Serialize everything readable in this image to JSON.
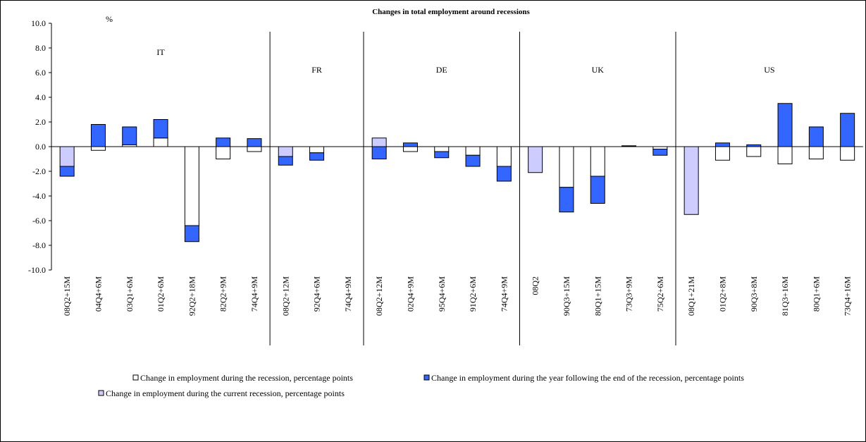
{
  "chart_data": {
    "type": "stacked-bar",
    "title": "Changes in total employment around recessions",
    "y_unit_label": "%",
    "groups": [
      "IT",
      "FR",
      "DE",
      "UK",
      "US"
    ],
    "categories": [
      "08Q2+15M",
      "04Q4+6M",
      "03Q1+6M",
      "01Q2+6M",
      "92Q2+18M",
      "82Q2+9M",
      "74Q4+9M",
      "08Q2+12M",
      "92Q4+6M",
      "74Q4+9M",
      "08Q2+12M",
      "02Q4+9M",
      "95Q4+6M",
      "91Q2+6M",
      "74Q4+9M",
      "08Q2",
      "90Q3+15M",
      "80Q1+15M",
      "73Q3+9M",
      "75Q2+6M",
      "08Q1+21M",
      "01Q2+8M",
      "90Q3+8M",
      "81Q3+16M",
      "80Q1+6M",
      "73Q4+16M"
    ],
    "series": [
      {
        "name": "Change in employment during the recession, percentage points",
        "color": "#ffffff",
        "values": [
          null,
          -0.3,
          0.15,
          0.7,
          -6.4,
          -1.0,
          -0.4,
          null,
          -0.5,
          null,
          null,
          -0.4,
          -0.4,
          -0.7,
          -1.6,
          null,
          -3.3,
          -2.4,
          0.02,
          -0.2,
          null,
          -1.1,
          -0.8,
          -1.4,
          -1.0,
          -1.1
        ]
      },
      {
        "name": "Change in employment during the year following the end of the recession, percentage points",
        "color": "#3366ff",
        "values": [
          -0.8,
          1.8,
          1.45,
          1.5,
          -1.3,
          0.7,
          0.65,
          -0.7,
          -0.6,
          null,
          -1.0,
          0.3,
          -0.5,
          -0.9,
          -1.2,
          null,
          -2.0,
          -2.2,
          0.05,
          -0.5,
          null,
          0.3,
          0.15,
          3.5,
          1.6,
          2.7
        ]
      },
      {
        "name": "Change in employment during the current recession, percentage points",
        "color": "#ccccff",
        "values": [
          -1.6,
          null,
          null,
          null,
          null,
          null,
          null,
          -0.8,
          null,
          null,
          0.7,
          null,
          null,
          null,
          null,
          -2.1,
          null,
          null,
          null,
          null,
          -5.5,
          null,
          null,
          null,
          null,
          null
        ]
      }
    ],
    "ylim": [
      -10,
      10
    ],
    "yticks": [
      {
        "value": -10,
        "label": "-10.0"
      },
      {
        "value": -8,
        "label": "-8.0"
      },
      {
        "value": -6,
        "label": "-6.0"
      },
      {
        "value": -4,
        "label": "-4.0"
      },
      {
        "value": -2,
        "label": "-2.0"
      },
      {
        "value": 0,
        "label": "0.0"
      },
      {
        "value": 2,
        "label": "2.0"
      },
      {
        "value": 4,
        "label": "4.0"
      },
      {
        "value": 6,
        "label": "6.0"
      },
      {
        "value": 8,
        "label": "8.0"
      },
      {
        "value": 10,
        "label": "10.0"
      }
    ]
  }
}
